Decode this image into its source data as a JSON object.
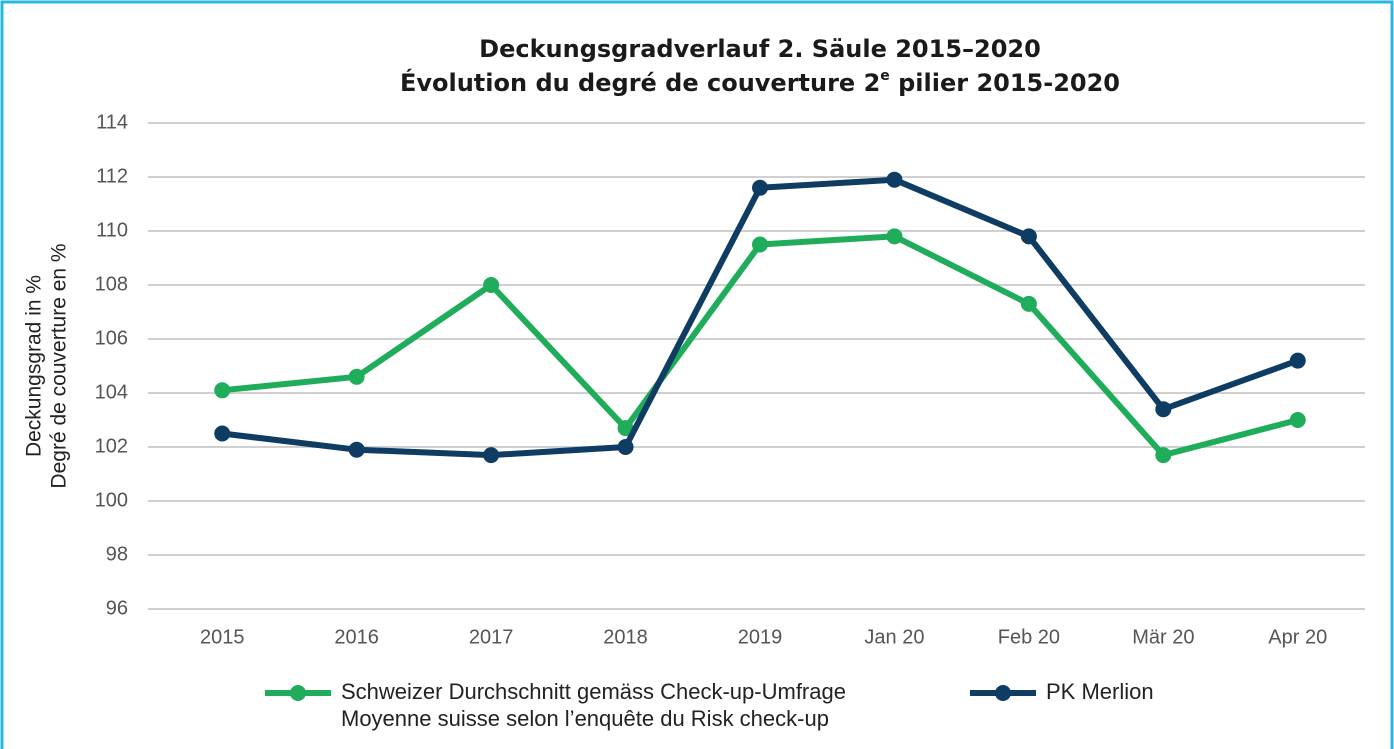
{
  "chart_data": {
    "type": "line",
    "title": [
      "Deckungsgradverlauf 2. Säule 2015–2020",
      [
        "Évolution du degré de couverture 2",
        "e",
        " pilier 2015-2020"
      ]
    ],
    "y_label": [
      "Deckungsgrad in %",
      "Degré de couverture en %"
    ],
    "categories": [
      "2015",
      "2016",
      "2017",
      "2018",
      "2019",
      "Jan 20",
      "Feb 20",
      "Mär 20",
      "Apr 20"
    ],
    "series": [
      {
        "name": [
          "Schweizer Durchschnitt gemäss Check-up-Umfrage",
          "Moyenne suisse selon l’enquête du Risk check-up"
        ],
        "color": "#1fad5b",
        "values": [
          104.1,
          104.6,
          108.0,
          102.7,
          109.5,
          109.8,
          107.3,
          101.7,
          103.0
        ]
      },
      {
        "name": [
          "PK Merlion"
        ],
        "color": "#0e3c62",
        "values": [
          102.5,
          101.9,
          101.7,
          102.0,
          111.6,
          111.9,
          109.8,
          103.4,
          105.2
        ]
      }
    ],
    "ylim": [
      96,
      114
    ],
    "yticks": [
      96,
      98,
      100,
      102,
      104,
      106,
      108,
      110,
      112,
      114
    ],
    "grid": true
  }
}
